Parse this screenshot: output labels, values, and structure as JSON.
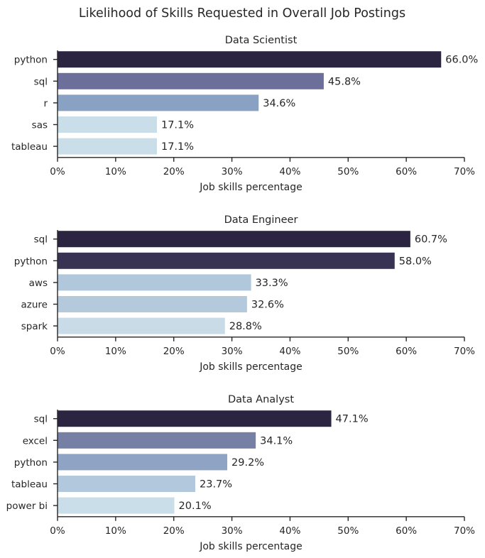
{
  "suptitle": "Likelihood of Skills Requested in Overall Job Postings",
  "chart_data": [
    {
      "type": "bar",
      "orientation": "horizontal",
      "title": "Data Scientist",
      "xlabel": "Job skills percentage",
      "ylabel": "",
      "xlim": [
        0,
        70
      ],
      "xticks": [
        "0%",
        "10%",
        "20%",
        "30%",
        "40%",
        "50%",
        "60%",
        "70%"
      ],
      "categories": [
        "python",
        "sql",
        "r",
        "sas",
        "tableau"
      ],
      "values": [
        66.0,
        45.8,
        34.6,
        17.1,
        17.1
      ],
      "value_labels": [
        "66.0%",
        "45.8%",
        "34.6%",
        "17.1%",
        "17.1%"
      ],
      "colors": [
        "#2c2541",
        "#6b6f9a",
        "#89a1c2",
        "#cadeea",
        "#cadeea"
      ],
      "grid": false
    },
    {
      "type": "bar",
      "orientation": "horizontal",
      "title": "Data Engineer",
      "xlabel": "Job skills percentage",
      "ylabel": "",
      "xlim": [
        0,
        70
      ],
      "xticks": [
        "0%",
        "10%",
        "20%",
        "30%",
        "40%",
        "50%",
        "60%",
        "70%"
      ],
      "categories": [
        "sql",
        "python",
        "aws",
        "azure",
        "spark"
      ],
      "values": [
        60.7,
        58.0,
        33.3,
        32.6,
        28.8
      ],
      "value_labels": [
        "60.7%",
        "58.0%",
        "33.3%",
        "32.6%",
        "28.8%"
      ],
      "colors": [
        "#2c2541",
        "#393353",
        "#b1c7db",
        "#b4c9dc",
        "#c8dbe7"
      ],
      "grid": false
    },
    {
      "type": "bar",
      "orientation": "horizontal",
      "title": "Data Analyst",
      "xlabel": "Job skills percentage",
      "ylabel": "",
      "xlim": [
        0,
        70
      ],
      "xticks": [
        "0%",
        "10%",
        "20%",
        "30%",
        "40%",
        "50%",
        "60%",
        "70%"
      ],
      "categories": [
        "sql",
        "excel",
        "python",
        "tableau",
        "power bi"
      ],
      "values": [
        47.1,
        34.1,
        29.2,
        23.7,
        20.1
      ],
      "value_labels": [
        "47.1%",
        "34.1%",
        "29.2%",
        "23.7%",
        "20.1%"
      ],
      "colors": [
        "#2c2541",
        "#767fa4",
        "#8fa4c4",
        "#b2c8dc",
        "#cadeea"
      ],
      "grid": false
    }
  ]
}
